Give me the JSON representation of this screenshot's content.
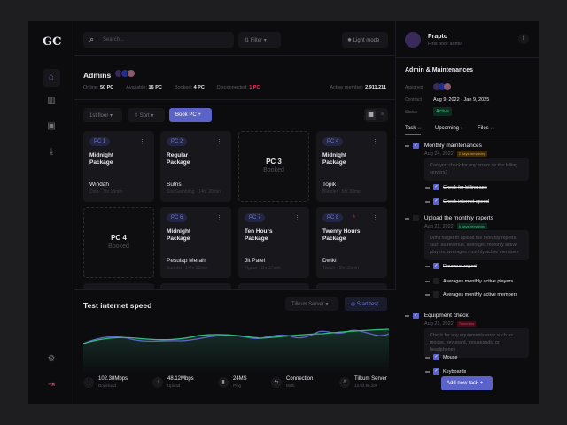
{
  "sidebar": {
    "logo": "GC",
    "items": [
      {
        "name": "home-icon",
        "glyph": "⌂"
      },
      {
        "name": "chart-icon",
        "glyph": "▥"
      },
      {
        "name": "notification-icon",
        "glyph": "▣"
      },
      {
        "name": "download-icon",
        "glyph": "⤓"
      }
    ],
    "settings": "⚙",
    "logout": "⇥"
  },
  "header": {
    "search_placeholder": "Search...",
    "filter": "Filter",
    "light_mode": "Light mode"
  },
  "admins": {
    "title": "Admins",
    "online_label": "Online:",
    "online": "50 PC",
    "available_label": "Available:",
    "available": "16 PC",
    "booked_label": "Booked:",
    "booked": "4 PC",
    "disconnected_label": "Disconnected:",
    "disconnected": "1 PC",
    "active_label": "Active member:",
    "active": "2,911,211"
  },
  "toolbar": {
    "floor": "1st floor",
    "sort": "Sort",
    "book": "Book PC  +"
  },
  "pcs": [
    {
      "id": "PC 1",
      "package": "Midnight Package",
      "user": "Windah",
      "detail": "Dota · 3hr 15min"
    },
    {
      "id": "PC 2",
      "package": "Regular Package",
      "user": "Sutris",
      "detail": "Slot Gambling · 14hr 20min"
    },
    {
      "id": "PC 3",
      "status": "Booked"
    },
    {
      "id": "PC 4",
      "package": "Midnight Package",
      "user": "Topik",
      "detail": "Blender · 5hr 30min"
    },
    {
      "id": "PC 4",
      "status": "Booked"
    },
    {
      "id": "PC 6",
      "package": "Midnight Package",
      "user": "Pesulap Merah",
      "detail": "Sudoku · 14hr 20min"
    },
    {
      "id": "PC 7",
      "package": "Ten Hours Package",
      "user": "Jit Patel",
      "detail": "Figma · 2hr 37min"
    },
    {
      "id": "PC 8",
      "package": "Twenty Hours Package",
      "user": "Dwiki",
      "detail": "Twitch · 5hr 30min"
    }
  ],
  "speed": {
    "title": "Test internet speed",
    "server_select": "Tilkum Server",
    "start": "Start test",
    "stats": [
      {
        "icon": "↓",
        "value": "102.38Mbps",
        "label": "Download"
      },
      {
        "icon": "↑",
        "value": "48.12Mbps",
        "label": "Upload"
      },
      {
        "icon": "▮",
        "value": "24MS",
        "label": "Ping"
      },
      {
        "icon": "⇆",
        "value": "Connection",
        "label": "Multi"
      },
      {
        "icon": "♙",
        "value": "Tilkum Server",
        "label": "12.82.98.109"
      }
    ],
    "colors": {
      "download": "#5b63c9",
      "upload": "#2fbf7f"
    }
  },
  "profile": {
    "name": "Prapto",
    "role": "First floor admin"
  },
  "panel": {
    "title": "Admin & Maintenances",
    "assigned_label": "Assigned",
    "contract_label": "Contract",
    "contract": "Aug 9, 2022 - Jan 9, 2025",
    "status_label": "Status",
    "status": "Active",
    "tabs": [
      {
        "label": "Task",
        "count": "16"
      },
      {
        "label": "Upcoming",
        "count": "5"
      },
      {
        "label": "Files",
        "count": "16"
      }
    ],
    "tasks": [
      {
        "title": "Monthly maintenances",
        "date": "Aug 24, 2022",
        "tag": "2 days remaining",
        "note": "Can you check for any errors on the billing servers?",
        "subs": [
          "Check for billing app",
          "Check internet speed"
        ]
      },
      {
        "title": "Upload the monthly reports",
        "date": "Aug 21, 2022",
        "tag": "6 days remaining",
        "note": "Don't forget to upload the monthly reports, such as revenue, averages monthly active players, averages monthly active members",
        "subs": [
          "Revenue report",
          "Averages monthly active players",
          "Averages monthly active members"
        ]
      },
      {
        "title": "Equipment check",
        "date": "Aug 21, 2022",
        "tag": "Tomorrow",
        "note": "Check for any equipments error such as mouse, keyboard, mousepads, or headphones",
        "subs": [
          "Mouse",
          "Keyboards"
        ]
      }
    ],
    "add_task": "Add new task  +"
  }
}
